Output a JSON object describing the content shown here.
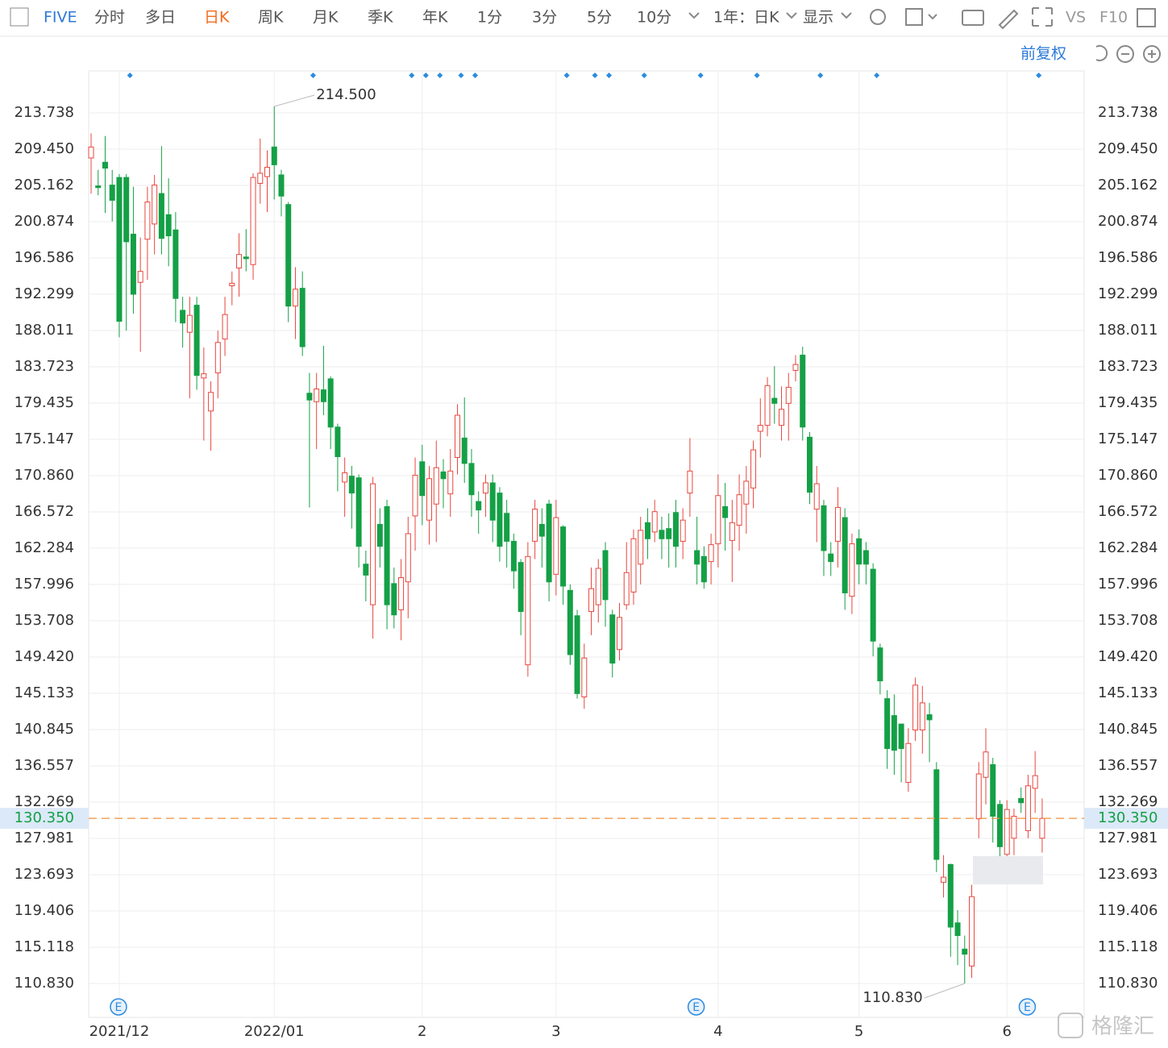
{
  "toolbar": {
    "symbol": "FIVE",
    "periods": [
      "分时",
      "多日",
      "日K",
      "周K",
      "月K",
      "季K",
      "年K",
      "1分",
      "3分",
      "5分",
      "10分"
    ],
    "range": "1年：日K",
    "display": "显示",
    "compare": "VS",
    "f10": "F10",
    "adjust": "前复权"
  },
  "watermark": "格隆汇",
  "chart_data": {
    "type": "candlestick",
    "categories": [
      null,
      null,
      null,
      null,
      "2021/12",
      null,
      null,
      null,
      null,
      null,
      null,
      null,
      null,
      null,
      null,
      null,
      null,
      null,
      null,
      null,
      null,
      null,
      null,
      null,
      null,
      null,
      "2022/01",
      null,
      null,
      null,
      null,
      null,
      null,
      null,
      null,
      null,
      null,
      null,
      null,
      null,
      null,
      null,
      null,
      null,
      null,
      null,
      null,
      "2",
      null,
      null,
      null,
      null,
      null,
      null,
      null,
      null,
      null,
      null,
      null,
      null,
      null,
      null,
      null,
      null,
      null,
      null,
      "3",
      null,
      null,
      null,
      null,
      null,
      null,
      null,
      null,
      null,
      null,
      null,
      null,
      null,
      null,
      null,
      null,
      null,
      null,
      null,
      null,
      null,
      null,
      "4",
      null,
      null,
      null,
      null,
      null,
      null,
      null,
      null,
      null,
      null,
      null,
      null,
      null,
      null,
      null,
      null,
      null,
      null,
      null,
      "5",
      null,
      null,
      null,
      null,
      null,
      null,
      null,
      null,
      null,
      null,
      null,
      null,
      null,
      null,
      null,
      null,
      null,
      null,
      null,
      null,
      "6",
      null,
      null,
      null,
      null,
      null
    ],
    "open": [
      208.4,
      205.1,
      207.9,
      205.2,
      206.1,
      206.1,
      199.4,
      193.7,
      198.8,
      200.6,
      204.2,
      201.7,
      199.9,
      190.4,
      187.8,
      191,
      182.4,
      178.5,
      183,
      187,
      193.3,
      195.4,
      196.7,
      195.8,
      205.4,
      206.2,
      209.7,
      206.4,
      202.9,
      190.9,
      193,
      180.6,
      179.6,
      181,
      182.3,
      176.6,
      170.1,
      170.8,
      170.6,
      160.4,
      155.6,
      165.1,
      167.2,
      158.1,
      155,
      158.3,
      166.1,
      172.5,
      165.6,
      167.5,
      171.3,
      168.7,
      173,
      175.3,
      172.3,
      167.8,
      168.8,
      170,
      168.8,
      166.4,
      163.1,
      160.6,
      148.5,
      163.1,
      165.1,
      167.5,
      159.2,
      164.8,
      157.3,
      154.3,
      144.7,
      154.8,
      155.6,
      162,
      154.4,
      150.3,
      155.6,
      157.1,
      160.4,
      165.3,
      164.2,
      164.4,
      164.6,
      166.5,
      163.1,
      168.8,
      162,
      161.3,
      160.7,
      162.8,
      167.2,
      163.2,
      165,
      167.5,
      169.4,
      176.1,
      176.8,
      180,
      176.8,
      179.4,
      183.3,
      185.1,
      175.4,
      166.9,
      167.3,
      161.6,
      163.1,
      165.9,
      156.6,
      163.4,
      162,
      159.8,
      150.5,
      144.5,
      142.5,
      141.5,
      134.6,
      140.8,
      140.8,
      142.6,
      136.1,
      122.8,
      124.9,
      118,
      114.9,
      112.9,
      130.3,
      135.2,
      136.7,
      132,
      126.1,
      128,
      132.7,
      128.9,
      133.9,
      128
    ],
    "high": [
      211.3,
      207,
      211,
      207,
      206.5,
      206.5,
      205,
      199,
      205,
      206.4,
      209.8,
      206,
      202,
      192,
      192,
      192,
      186,
      182,
      188,
      192,
      195,
      199.5,
      200,
      206.6,
      210.7,
      209.3,
      214.5,
      207,
      203.2,
      195.5,
      195,
      183,
      183,
      186.2,
      182.6,
      177,
      173,
      172,
      171,
      162,
      170.7,
      167,
      168,
      160,
      161,
      166,
      173,
      174.5,
      172,
      175,
      172.8,
      174,
      179.3,
      180.1,
      174,
      169,
      171,
      171,
      169.5,
      168,
      164,
      161,
      163,
      168,
      167,
      168,
      168,
      165,
      158,
      155,
      151,
      160,
      161,
      163,
      155,
      155.8,
      163,
      164.5,
      166,
      167,
      168,
      166,
      166.4,
      168,
      167,
      175.3,
      166,
      162.5,
      164,
      171,
      170,
      168,
      171,
      172,
      175,
      180,
      182.5,
      183.8,
      181.4,
      183,
      185.1,
      186.1,
      176,
      172,
      168,
      163,
      169.5,
      167,
      164,
      164.5,
      163,
      160.5,
      151,
      145.5,
      145,
      141.5,
      141,
      147,
      146,
      144,
      137,
      126,
      125,
      119.5,
      116.5,
      122.5,
      137,
      141,
      137.5,
      132.5,
      132.5,
      131.5,
      134,
      135.5,
      138.3,
      132.7
    ],
    "low": [
      204.2,
      204,
      201.9,
      200.9,
      187.2,
      188,
      190,
      185.5,
      194,
      197,
      197,
      195.6,
      189,
      186,
      180,
      181,
      175,
      173.8,
      180,
      185,
      191,
      192,
      195,
      194,
      203,
      202,
      203.5,
      201.5,
      189,
      187,
      185,
      167.1,
      174,
      178,
      174,
      169,
      166,
      164.6,
      160,
      156,
      151.6,
      160,
      152.7,
      152.8,
      151.4,
      154,
      162,
      165,
      162.7,
      163,
      167,
      166,
      171,
      170,
      166,
      164,
      166,
      163,
      160.7,
      160,
      157.5,
      152,
      147.1,
      161,
      160,
      156,
      156.7,
      155.6,
      148.5,
      144.5,
      143.3,
      152,
      153.5,
      153,
      147,
      149,
      155,
      155.6,
      158,
      161,
      163,
      161,
      160,
      160,
      161,
      166,
      158,
      157.5,
      158,
      160,
      162,
      158.3,
      162,
      164,
      167,
      173,
      175.5,
      177,
      175,
      175,
      182,
      175,
      167.5,
      163,
      159,
      159,
      160,
      155,
      154.5,
      158,
      158,
      149.5,
      145,
      136.2,
      135.5,
      134.6,
      133.5,
      139.5,
      138,
      137,
      124,
      121,
      114,
      113,
      110.83,
      111.5,
      128,
      132,
      127.5,
      125.7,
      125.3,
      126,
      131,
      128,
      131,
      126.3
    ],
    "close": [
      209.7,
      204.9,
      207.2,
      203.4,
      189.1,
      198.5,
      192.3,
      195,
      203.2,
      205.2,
      198.9,
      199.2,
      191.8,
      188.9,
      189.8,
      182.7,
      182.9,
      180.7,
      186.6,
      189.9,
      193.6,
      197,
      196.5,
      206.1,
      206.6,
      207.3,
      207.6,
      203.9,
      190.9,
      192.9,
      186.1,
      179.8,
      181.1,
      179.6,
      176.6,
      173.1,
      171.2,
      168.8,
      162.5,
      159.1,
      169.9,
      162.5,
      155.6,
      154.4,
      158.8,
      164,
      170.9,
      168.5,
      170.5,
      171.8,
      170.5,
      171.4,
      178,
      172.3,
      168.6,
      166.8,
      170,
      165.6,
      162.5,
      163.1,
      159.6,
      154.8,
      161.3,
      166.9,
      163.7,
      158.3,
      165.9,
      157.8,
      149.7,
      145.1,
      149.3,
      157.5,
      159.9,
      156.2,
      148.7,
      154.1,
      159.4,
      163.4,
      164.4,
      163.4,
      166.6,
      163.4,
      163.4,
      162.5,
      165.6,
      171.4,
      160.4,
      158.3,
      162.7,
      168.5,
      165.9,
      165.3,
      168.6,
      170.2,
      173.9,
      176.8,
      181.5,
      179.4,
      178.7,
      181.3,
      184,
      176.6,
      168.9,
      169.9,
      162,
      160.7,
      167.1,
      157,
      162.8,
      160.4,
      160.4,
      151.3,
      146.6,
      138.6,
      138.4,
      138.6,
      139.2,
      146.1,
      144,
      142,
      125.5,
      123.4,
      117.5,
      116.5,
      114.3,
      121.1,
      135.6,
      138.2,
      130.6,
      127,
      131.4,
      130.6,
      132.2,
      134.2,
      135.4,
      130.35
    ],
    "up_color": "#e8473f",
    "down_color": "#14a046",
    "ylim": [
      106.83,
      218.69
    ],
    "yticks": [
      213.738,
      {
        "value": 209.45,
        "label": "209.450"
      },
      205.162,
      200.874,
      196.586,
      192.299,
      188.011,
      183.723,
      179.435,
      175.147,
      {
        "value": 170.86,
        "label": "170.860"
      },
      166.572,
      162.284,
      157.996,
      153.708,
      {
        "value": 149.42,
        "label": "149.420"
      },
      145.133,
      140.845,
      136.557,
      132.269,
      127.981,
      123.693,
      119.406,
      115.118,
      {
        "value": 110.83,
        "label": "110.830"
      }
    ],
    "grid": true,
    "last_price": {
      "value": 130.35,
      "label": "130.350"
    },
    "annotations": [
      {
        "value": 214.5,
        "label": "214.500"
      },
      {
        "value": 110.83,
        "label": "110.830"
      }
    ],
    "earnings_marker": "E"
  }
}
